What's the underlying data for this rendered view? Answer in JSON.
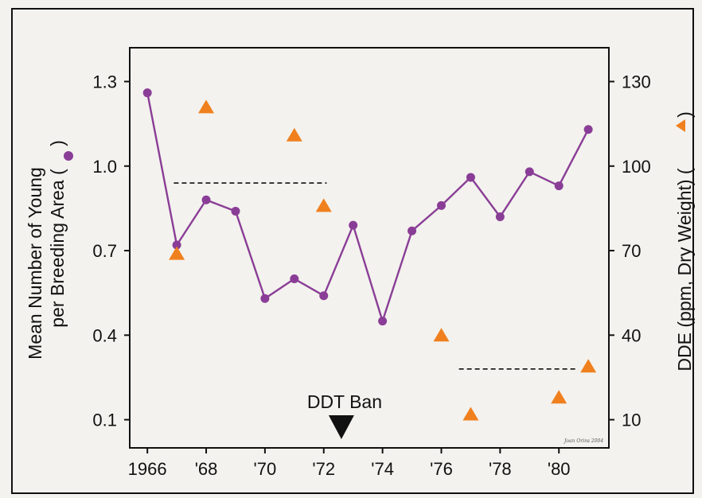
{
  "chart_data": {
    "type": "line",
    "x_tick_labels": [
      "1966",
      "'68",
      "'70",
      "'72",
      "'74",
      "'76",
      "'78",
      "'80"
    ],
    "x_ticks": [
      1966,
      1968,
      1970,
      1972,
      1974,
      1976,
      1978,
      1980
    ],
    "xlim": [
      1965.4,
      1981.7
    ],
    "y_left": {
      "label_line1": "Mean Number of Young",
      "label_line2": "per Breeding Area (",
      "label_close": ")",
      "ticks": [
        "0.1",
        "0.4",
        "0.7",
        "1.0",
        "1.3"
      ],
      "tick_values": [
        0.1,
        0.4,
        0.7,
        1.0,
        1.3
      ],
      "ylim": [
        0.0,
        1.42
      ]
    },
    "y_right": {
      "label_main": "DDE (ppm, Dry Weight) (",
      "label_close": ")",
      "ticks": [
        "10",
        "40",
        "70",
        "100",
        "130"
      ],
      "tick_values": [
        10,
        40,
        70,
        100,
        130
      ],
      "ylim": [
        0,
        142
      ]
    },
    "series": [
      {
        "marker": "circle",
        "axis": "left",
        "color": "#8a3d96",
        "x": [
          1966,
          1967,
          1968,
          1969,
          1970,
          1971,
          1972,
          1973,
          1974,
          1975,
          1976,
          1977,
          1978,
          1979,
          1980,
          1981
        ],
        "y": [
          1.26,
          0.72,
          0.88,
          0.84,
          0.53,
          0.6,
          0.54,
          0.79,
          0.45,
          0.77,
          0.86,
          0.96,
          0.82,
          0.98,
          0.93,
          1.13
        ]
      },
      {
        "marker": "triangle",
        "axis": "right",
        "color": "#f0801e",
        "x": [
          1967,
          1968,
          1971,
          1972,
          1976,
          1977,
          1980,
          1981
        ],
        "y": [
          69,
          121,
          111,
          86,
          40,
          12,
          18,
          29
        ]
      }
    ],
    "reference_lines": [
      {
        "axis": "right",
        "x_start": 1966.9,
        "x_end": 1972.1,
        "y": 94
      },
      {
        "axis": "right",
        "x_start": 1976.6,
        "x_end": 1980.6,
        "y": 28
      }
    ],
    "annotations": [
      {
        "text": "DDT Ban",
        "x": 1972.6,
        "arrow": "down"
      }
    ],
    "credit": "Joan Orins 2004",
    "grid": false,
    "legend": "none"
  }
}
